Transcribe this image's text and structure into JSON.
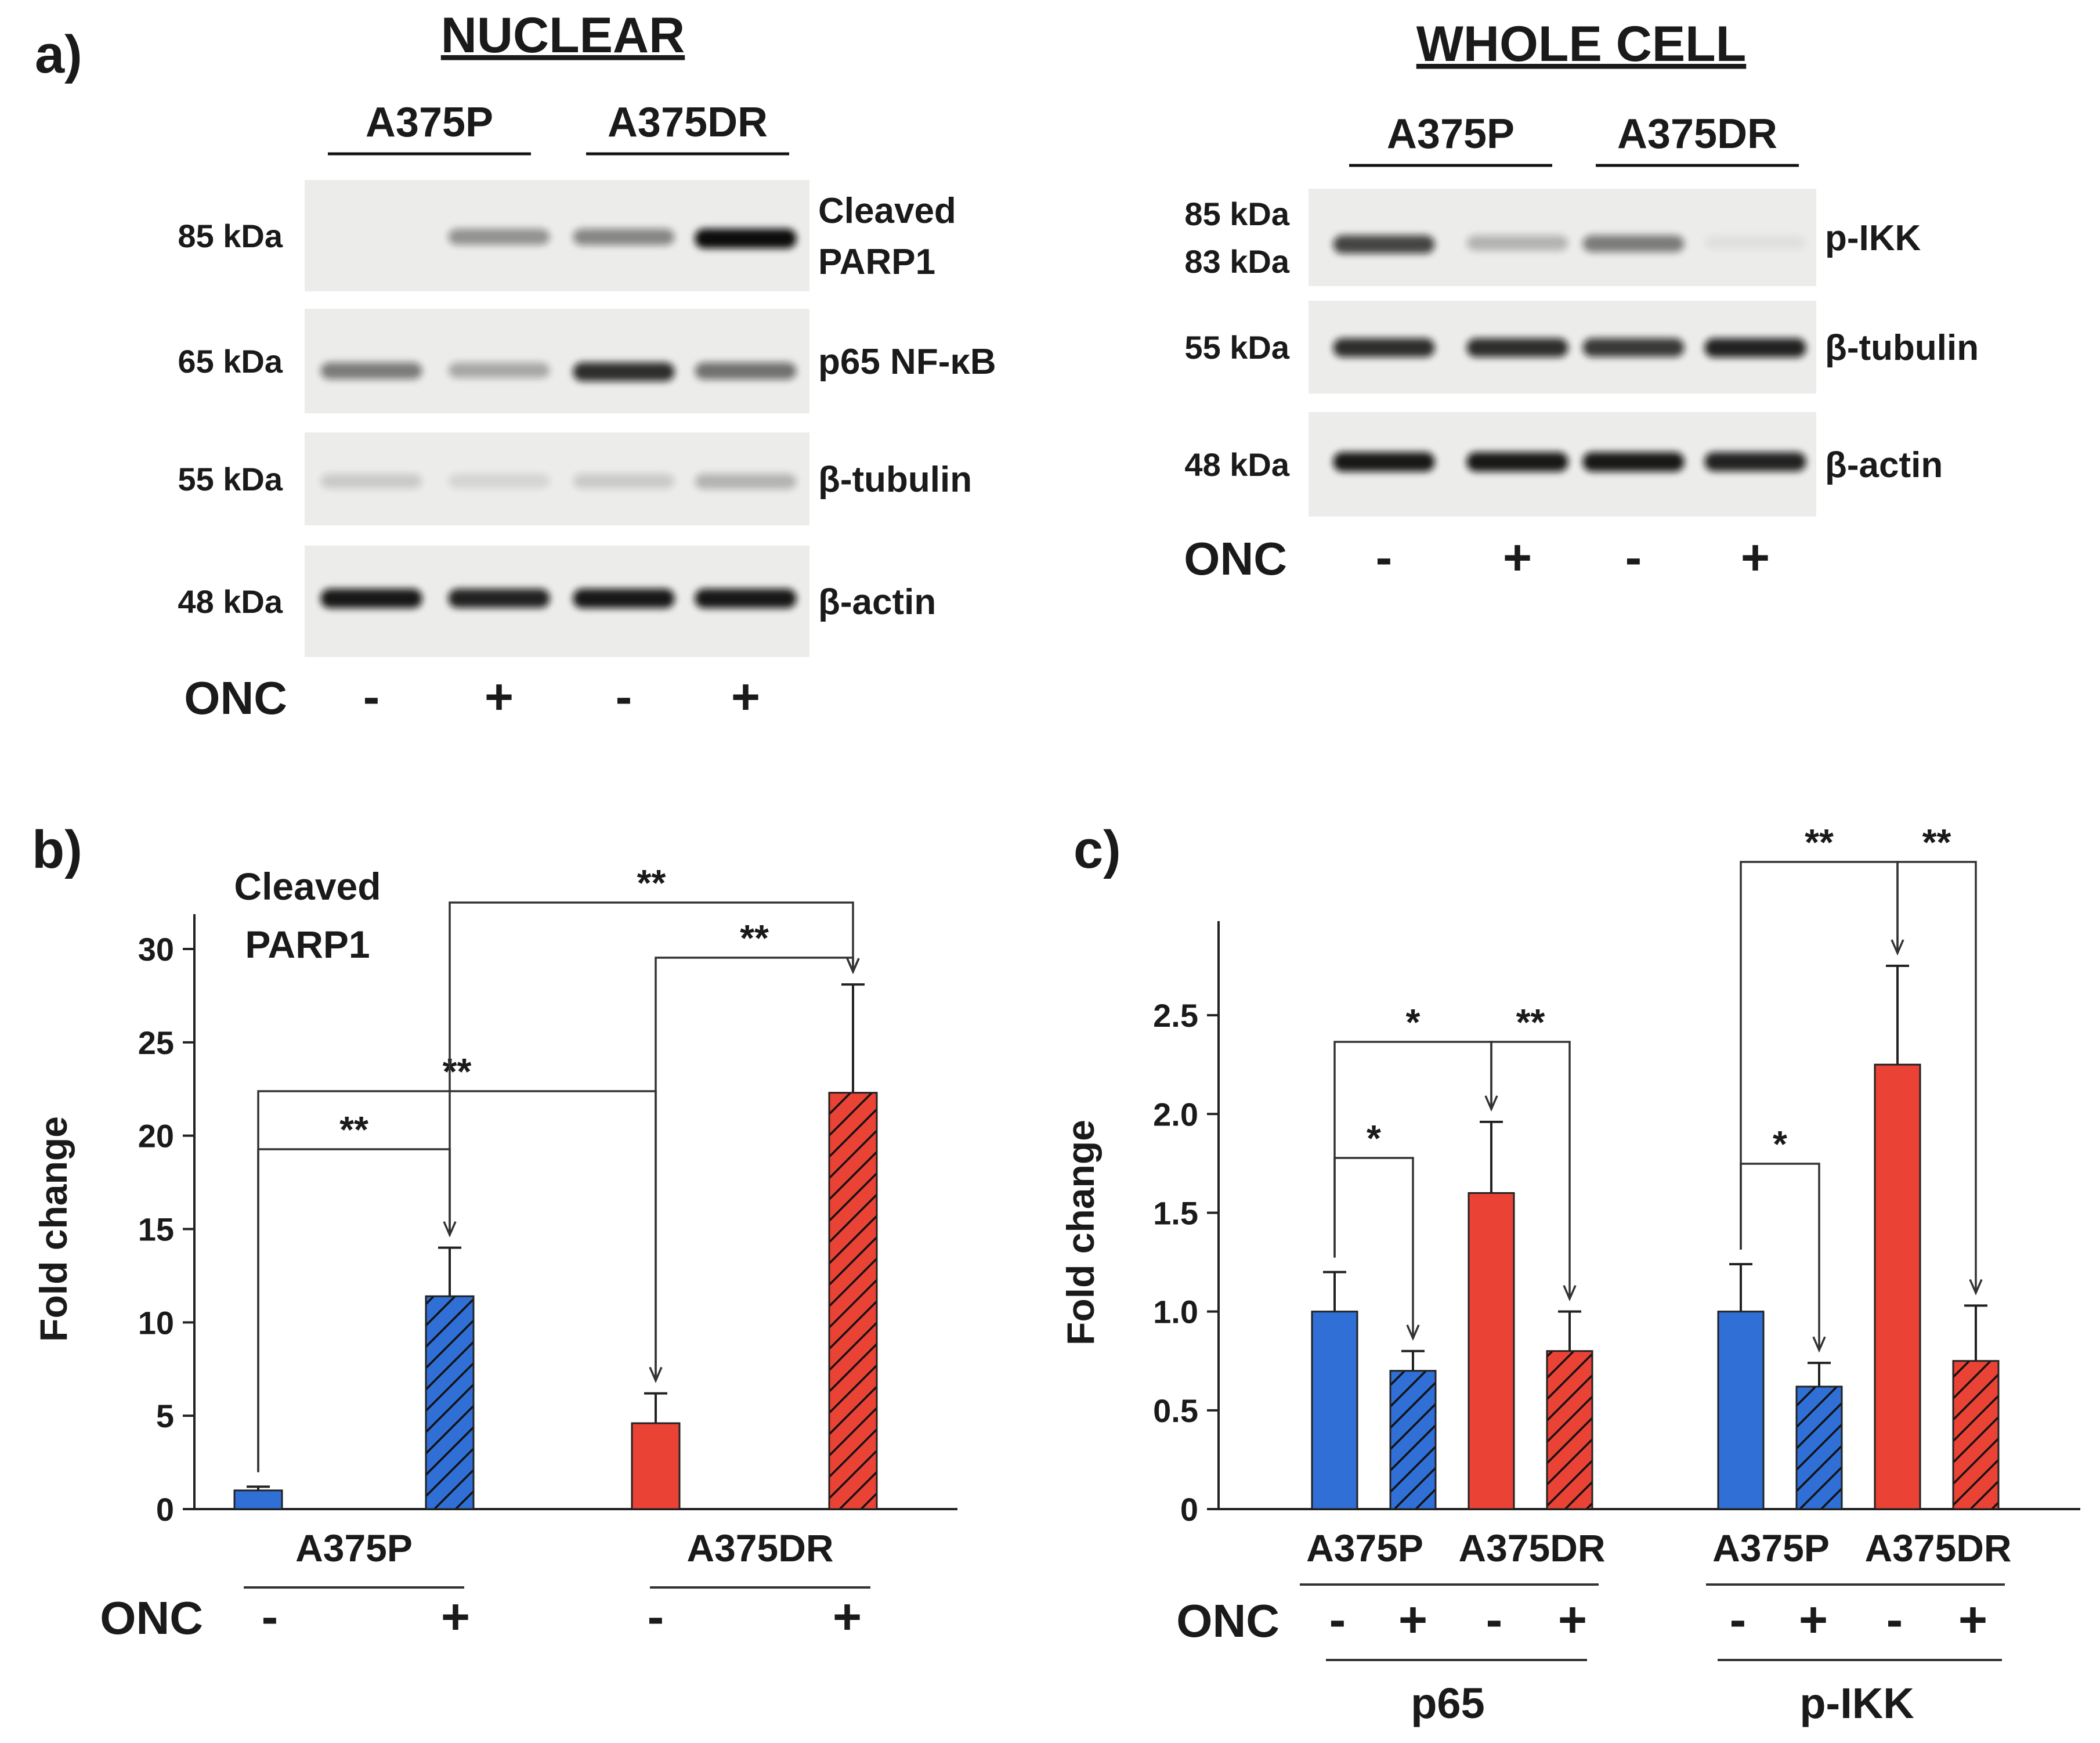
{
  "panel_a": {
    "letter": "a)",
    "nuclear": {
      "title": "NUCLEAR",
      "groups": [
        "A375P",
        "A375DR"
      ],
      "rows": [
        {
          "kda": "85 kDa",
          "protein_lines": [
            "Cleaved",
            "PARP1"
          ],
          "band_intensity": [
            0.0,
            0.4,
            0.45,
            1.0
          ]
        },
        {
          "kda": "65 kDa",
          "protein_lines": [
            "p65 NF-κB"
          ],
          "band_intensity": [
            0.5,
            0.3,
            0.85,
            0.55
          ]
        },
        {
          "kda": "55 kDa",
          "protein_lines": [
            "β-tubulin"
          ],
          "band_intensity": [
            0.15,
            0.1,
            0.15,
            0.25
          ]
        },
        {
          "kda": "48 kDa",
          "protein_lines": [
            "β-actin"
          ],
          "band_intensity": [
            0.95,
            0.9,
            0.95,
            0.95
          ]
        }
      ],
      "onc_label": "ONC",
      "onc_signs": [
        "-",
        "+",
        "-",
        "+"
      ]
    },
    "whole_cell": {
      "title": "WHOLE CELL",
      "groups": [
        "A375P",
        "A375DR"
      ],
      "rows": [
        {
          "kda_lines": [
            "85 kDa",
            "83 kDa"
          ],
          "protein_lines": [
            "p-IKK"
          ],
          "band_intensity": [
            0.75,
            0.25,
            0.5,
            0.05
          ]
        },
        {
          "kda_lines": [
            "55 kDa"
          ],
          "protein_lines": [
            "β-tubulin"
          ],
          "band_intensity": [
            0.85,
            0.85,
            0.8,
            0.9
          ]
        },
        {
          "kda_lines": [
            "48 kDa"
          ],
          "protein_lines": [
            "β-actin"
          ],
          "band_intensity": [
            0.95,
            0.95,
            0.95,
            0.9
          ]
        }
      ],
      "onc_label": "ONC",
      "onc_signs": [
        "-",
        "+",
        "-",
        "+"
      ]
    }
  },
  "panel_b": {
    "letter": "b)"
  },
  "panel_c": {
    "letter": "c)"
  },
  "colors": {
    "blue": "#2f6fd6",
    "red": "#ea4335",
    "axis": "#222222"
  },
  "chart_data": [
    {
      "type": "bar",
      "panel": "b",
      "title_lines": [
        "Cleaved",
        "PARP1"
      ],
      "ylabel": "Fold change",
      "ylim": [
        0,
        30
      ],
      "yticks": [
        0,
        5,
        10,
        15,
        20,
        25,
        30
      ],
      "bars": [
        {
          "cell": "A375P",
          "onc": "-",
          "value": 1.0,
          "error": 0.2,
          "color": "blue",
          "hatched": false
        },
        {
          "cell": "A375P",
          "onc": "+",
          "value": 11.4,
          "error": 2.6,
          "color": "blue",
          "hatched": true
        },
        {
          "cell": "A375DR",
          "onc": "-",
          "value": 4.6,
          "error": 1.6,
          "color": "red",
          "hatched": false
        },
        {
          "cell": "A375DR",
          "onc": "+",
          "value": 22.3,
          "error": 5.8,
          "color": "red",
          "hatched": true
        }
      ],
      "group_labels": [
        "A375P",
        "A375DR"
      ],
      "onc_label": "ONC",
      "onc_signs": [
        "-",
        "+",
        "-",
        "+"
      ],
      "significance": [
        {
          "from": 0,
          "to": 1,
          "label": "**"
        },
        {
          "from": 0,
          "to": 2,
          "label": "**"
        },
        {
          "from": 1,
          "to": 3,
          "label": "**"
        },
        {
          "from": 2,
          "to": 3,
          "label": "**"
        }
      ]
    },
    {
      "type": "bar",
      "panel": "c",
      "ylabel": "Fold change",
      "ylim": [
        0,
        2.8
      ],
      "yticks": [
        "0",
        "0.5",
        "1.0",
        "1.5",
        "2.0",
        "2.5"
      ],
      "bars": [
        {
          "cell": "A375P",
          "onc": "-",
          "value": 1.0,
          "error": 0.2,
          "color": "blue",
          "hatched": false
        },
        {
          "cell": "A375P",
          "onc": "+",
          "value": 0.7,
          "error": 0.1,
          "color": "blue",
          "hatched": true
        },
        {
          "cell": "A375DR",
          "onc": "-",
          "value": 1.6,
          "error": 0.36,
          "color": "red",
          "hatched": false
        },
        {
          "cell": "A375DR",
          "onc": "+",
          "value": 0.8,
          "error": 0.2,
          "color": "red",
          "hatched": true
        },
        {
          "cell": "A375P",
          "onc": "-",
          "value": 1.0,
          "error": 0.24,
          "color": "blue",
          "hatched": false
        },
        {
          "cell": "A375P",
          "onc": "+",
          "value": 0.62,
          "error": 0.12,
          "color": "blue",
          "hatched": true
        },
        {
          "cell": "A375DR",
          "onc": "-",
          "value": 2.25,
          "error": 0.5,
          "color": "red",
          "hatched": false
        },
        {
          "cell": "A375DR",
          "onc": "+",
          "value": 0.75,
          "error": 0.28,
          "color": "red",
          "hatched": true
        }
      ],
      "cell_labels": [
        "A375P",
        "A375DR",
        "A375P",
        "A375DR"
      ],
      "onc_label": "ONC",
      "onc_signs": [
        "-",
        "+",
        "-",
        "+",
        "-",
        "+",
        "-",
        "+"
      ],
      "group_labels": [
        "p65",
        "p-IKK"
      ],
      "significance": [
        {
          "from": 0,
          "to": 1,
          "label": "*"
        },
        {
          "from": 0,
          "to": 2,
          "label": "*"
        },
        {
          "from": 2,
          "to": 3,
          "label": "**"
        },
        {
          "from": 4,
          "to": 5,
          "label": "*"
        },
        {
          "from": 4,
          "to": 6,
          "label": "**"
        },
        {
          "from": 6,
          "to": 7,
          "label": "**"
        }
      ]
    }
  ]
}
